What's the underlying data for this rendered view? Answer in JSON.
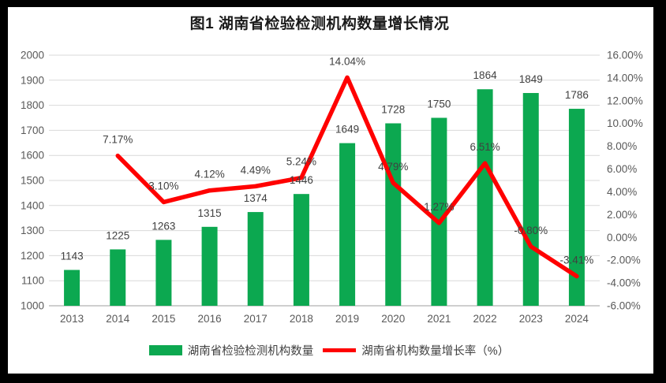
{
  "title": "图1 湖南省检验检测机构数量增长情况",
  "colors": {
    "bar": "#0CA850",
    "line": "#FF0000",
    "grid": "#D9D9D9",
    "axis_line": "#BFBFBF",
    "tick_text": "#595959",
    "label_text": "#404040",
    "frame": "#000000",
    "surface": "#FFFFFF"
  },
  "chart_data": {
    "type": "bar+line combo",
    "title": "图1 湖南省检验检测机构数量增长情况",
    "categories": [
      "2013",
      "2014",
      "2015",
      "2016",
      "2017",
      "2018",
      "2019",
      "2020",
      "2021",
      "2022",
      "2023",
      "2024"
    ],
    "series": [
      {
        "name": "湖南省检验检测机构数量",
        "type": "bar",
        "axis": "left",
        "color": "#0CA850",
        "values": [
          1143,
          1225,
          1263,
          1315,
          1374,
          1446,
          1649,
          1728,
          1750,
          1864,
          1849,
          1786
        ],
        "labels": [
          "1143",
          "1225",
          "1263",
          "1315",
          "1374",
          "1446",
          "1649",
          "1728",
          "1750",
          "1864",
          "1849",
          "1786"
        ]
      },
      {
        "name": "湖南省机构数量增长率（%）",
        "type": "line",
        "axis": "right",
        "color": "#FF0000",
        "values": [
          null,
          7.17,
          3.1,
          4.12,
          4.49,
          5.24,
          14.04,
          4.79,
          1.27,
          6.51,
          -0.8,
          -3.41
        ],
        "labels": [
          null,
          "7.17%",
          "3.10%",
          "4.12%",
          "4.49%",
          "5.24%",
          "14.04%",
          "4.79%",
          "1.27%",
          "6.51%",
          "-0.80%",
          "-3.41%"
        ]
      }
    ],
    "left_axis": {
      "min": 1000,
      "max": 2000,
      "step": 100,
      "ticks": [
        "2000",
        "1900",
        "1800",
        "1700",
        "1600",
        "1500",
        "1400",
        "1300",
        "1200",
        "1100",
        "1000"
      ]
    },
    "right_axis": {
      "min": -6,
      "max": 16,
      "step": 2,
      "ticks": [
        "16.00%",
        "14.00%",
        "12.00%",
        "10.00%",
        "8.00%",
        "6.00%",
        "4.00%",
        "2.00%",
        "0.00%",
        "-2.00%",
        "-4.00%",
        "-6.00%"
      ]
    },
    "grid": true,
    "legend_position": "bottom"
  }
}
